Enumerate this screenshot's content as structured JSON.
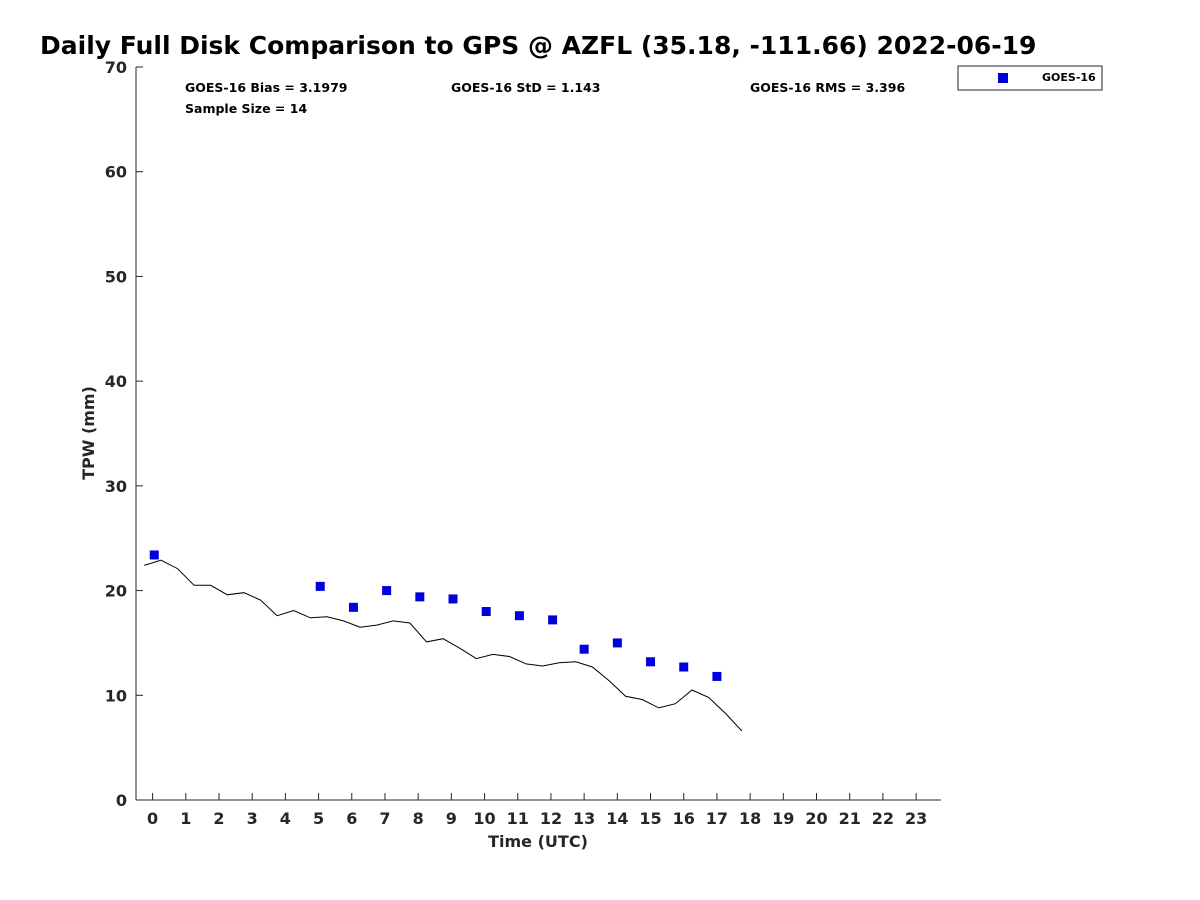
{
  "chart_data": {
    "type": "scatter",
    "title": "Daily Full Disk Comparison to GPS @ AZFL (35.18, -111.66) 2022-06-19",
    "xlabel": "Time (UTC)",
    "ylabel": "TPW (mm)",
    "xlim": [
      -0.5,
      23.75
    ],
    "ylim": [
      0,
      70
    ],
    "x_ticks": [
      0,
      1,
      2,
      3,
      4,
      5,
      6,
      7,
      8,
      9,
      10,
      11,
      12,
      13,
      14,
      15,
      16,
      17,
      18,
      19,
      20,
      21,
      22,
      23
    ],
    "x_tick_labels": [
      "0",
      "1",
      "2",
      "3",
      "4",
      "5",
      "6",
      "7",
      "8",
      "9",
      "10",
      "11",
      "12",
      "13",
      "14",
      "15",
      "16",
      "17",
      "18",
      "19",
      "20",
      "21",
      "22",
      "23"
    ],
    "y_ticks": [
      0,
      10,
      20,
      30,
      40,
      50,
      60,
      70
    ],
    "y_tick_labels": [
      "0",
      "10",
      "20",
      "30",
      "40",
      "50",
      "60",
      "70"
    ],
    "grid": false,
    "legend_position": "top-right-outside",
    "stats": {
      "bias": "GOES-16 Bias = 3.1979",
      "std": "GOES-16 StD = 1.143",
      "rms": "GOES-16 RMS = 3.396",
      "sample": "Sample Size = 14"
    },
    "series": [
      {
        "name": "GOES-16",
        "kind": "scatter",
        "marker": "square",
        "color": "#0000dd",
        "x": [
          0.05,
          5.05,
          6.05,
          7.05,
          8.05,
          9.05,
          10.05,
          11.05,
          12.05,
          13.0,
          14.0,
          15.0,
          16.0,
          17.0
        ],
        "y": [
          23.4,
          20.4,
          18.4,
          20.0,
          19.4,
          19.2,
          18.0,
          17.6,
          17.2,
          14.4,
          15.0,
          13.2,
          12.7,
          11.8
        ]
      },
      {
        "kind": "line",
        "color": "#000000",
        "x": [
          -0.25,
          0.25,
          0.75,
          1.25,
          1.75,
          2.25,
          2.75,
          3.25,
          3.75,
          4.25,
          4.75,
          5.25,
          5.75,
          6.25,
          6.75,
          7.25,
          7.75,
          8.25,
          8.75,
          9.25,
          9.75,
          10.25,
          10.75,
          11.25,
          11.75,
          12.25,
          12.75,
          13.25,
          13.75,
          14.25,
          14.75,
          15.25,
          15.75,
          16.25,
          16.75,
          17.25,
          17.75
        ],
        "y": [
          22.4,
          22.9,
          22.1,
          20.5,
          20.5,
          19.6,
          19.8,
          19.1,
          17.6,
          18.1,
          17.4,
          17.5,
          17.1,
          16.5,
          16.7,
          17.1,
          16.9,
          15.1,
          15.4,
          14.5,
          13.5,
          13.9,
          13.7,
          13.0,
          12.8,
          13.1,
          13.2,
          12.7,
          11.4,
          9.9,
          9.6,
          8.8,
          9.2,
          10.5,
          9.8,
          8.3,
          6.6
        ]
      }
    ]
  }
}
